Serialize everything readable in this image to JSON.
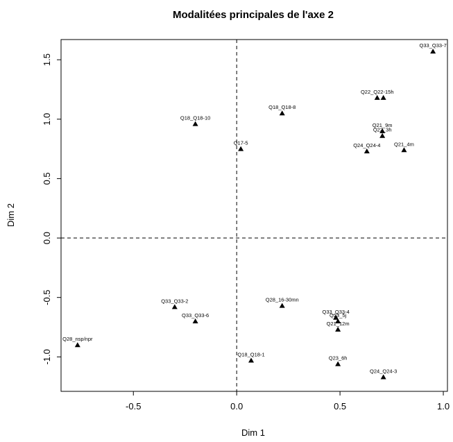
{
  "chart_data": {
    "type": "scatter",
    "title": "Modalitées principales de l'axe 2",
    "xlabel": "Dim 1",
    "ylabel": "Dim 2",
    "xlim": [
      -0.85,
      1.02
    ],
    "ylim": [
      -1.29,
      1.67
    ],
    "x_ticks": [
      -0.5,
      0.0,
      0.5,
      1.0
    ],
    "x_tick_labels": [
      "-0.5",
      "0.0",
      "0.5",
      "1.0"
    ],
    "y_ticks": [
      -1.0,
      -0.5,
      0.0,
      0.5,
      1.0,
      1.5
    ],
    "y_tick_labels": [
      "-1.0",
      "-0.5",
      "0.0",
      "0.5",
      "1.0",
      "1.5"
    ],
    "reference_lines": {
      "x": 0,
      "y": 0,
      "style": "dashed"
    },
    "marker": "filled-triangle",
    "points": [
      {
        "label": "Q33_Q33-7",
        "x": 0.95,
        "y": 1.57
      },
      {
        "label": "Q22_Q22-15h",
        "x": 0.68,
        "y": 1.18
      },
      {
        "label": "",
        "x": 0.71,
        "y": 1.18
      },
      {
        "label": "Q18_Q18-8",
        "x": 0.22,
        "y": 1.05
      },
      {
        "label": "Q18_Q18-10",
        "x": -0.2,
        "y": 0.96
      },
      {
        "label": "Q21_9m",
        "x": 0.705,
        "y": 0.9
      },
      {
        "label": "Q22_3h",
        "x": 0.705,
        "y": 0.86
      },
      {
        "label": "Q17-5",
        "x": 0.02,
        "y": 0.75
      },
      {
        "label": "Q24_Q24-4",
        "x": 0.63,
        "y": 0.73
      },
      {
        "label": "Q21_4m",
        "x": 0.81,
        "y": 0.74
      },
      {
        "label": "Q33_Q33-2",
        "x": -0.3,
        "y": -0.58
      },
      {
        "label": "Q28_16-30mn",
        "x": 0.22,
        "y": -0.57
      },
      {
        "label": "Q33_Q33-6",
        "x": -0.2,
        "y": -0.7
      },
      {
        "label": "Q33_Q33-4",
        "x": 0.48,
        "y": -0.67
      },
      {
        "label": "Q23_5j",
        "x": 0.49,
        "y": -0.7
      },
      {
        "label": "Q21_12m",
        "x": 0.49,
        "y": -0.77
      },
      {
        "label": "Q28_nsp/npr",
        "x": -0.77,
        "y": -0.9
      },
      {
        "label": "Q18_Q18-1",
        "x": 0.07,
        "y": -1.03
      },
      {
        "label": "Q23_6h",
        "x": 0.49,
        "y": -1.06
      },
      {
        "label": "Q24_Q24-3",
        "x": 0.71,
        "y": -1.17
      }
    ],
    "grid": false
  }
}
